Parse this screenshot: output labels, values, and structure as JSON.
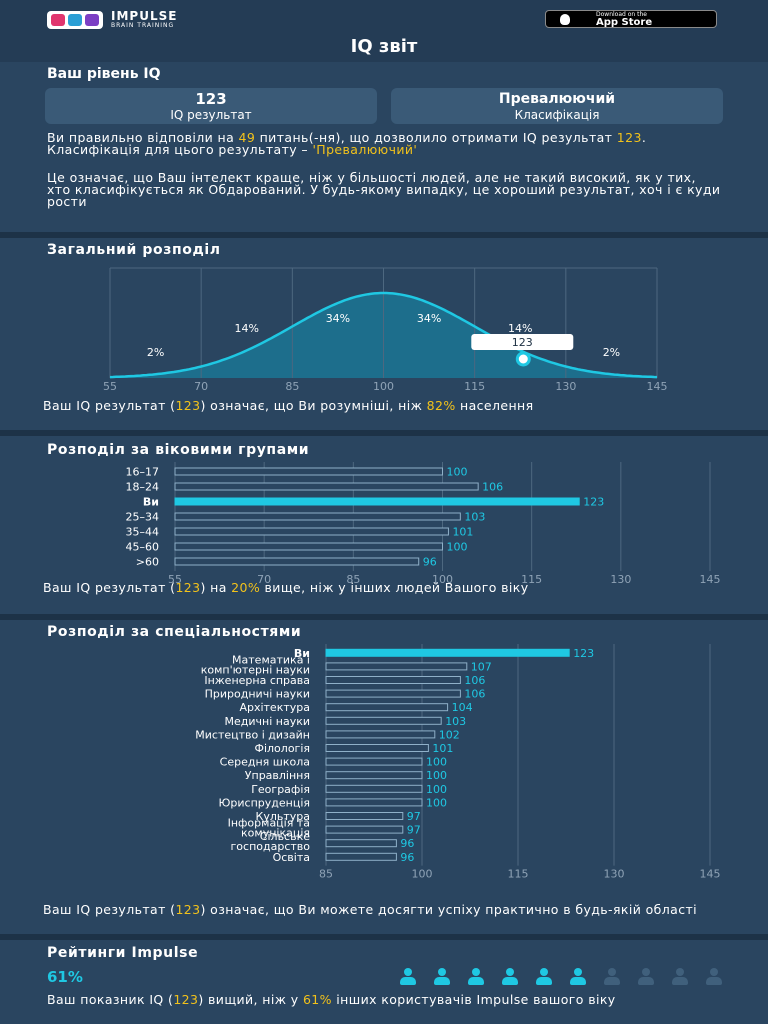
{
  "brand": {
    "name": "IMPULSE",
    "tagline": "BRAIN TRAINING"
  },
  "app_store": {
    "line1": "Download on the",
    "line2": "App Store"
  },
  "page_title": "IQ звіт",
  "level": {
    "heading": "Ваш рівень IQ",
    "score_card": {
      "value": "123",
      "caption": "IQ результат"
    },
    "class_card": {
      "value": "Превалюючий",
      "caption": "Класифікація"
    },
    "p1": {
      "a": "Ви правильно відповіли на ",
      "answers": "49",
      "b": " питань(-ня), що дозволило отримати IQ результат ",
      "score": "123",
      "c": ". Класифікація для цього результату – ",
      "cls": "'Превалюючий'"
    },
    "p2": "Це означає, що Ваш інтелект краще, ніж у більшості людей, але не такий високий, як у тих, хто класифікується як Обдарований. У будь-якому випадку, це хороший результат, хоч і є куди рости"
  },
  "colors": {
    "accent": "#1fc8e3",
    "highlight": "#f2c21b",
    "background": "#2a4560",
    "card": "#3a5a77",
    "muted_icon": "#40607c"
  },
  "distribution": {
    "heading": "Загальний розподіл",
    "marker_label": "123",
    "caption": {
      "a": "Ваш IQ результат (",
      "score": "123",
      "b": ") означає, що Ви розумніші, ніж ",
      "pct": "82%",
      "c": " населення"
    }
  },
  "age": {
    "heading": "Розподіл за віковими групами",
    "caption": {
      "a": "Ваш IQ результат (",
      "score": "123",
      "b": ") на ",
      "pct": "20%",
      "c": " вище, ніж у інших людей Вашого віку"
    }
  },
  "prof": {
    "heading": "Розподіл за спеціальностями",
    "caption": {
      "a": "Ваш IQ результат (",
      "score": "123",
      "b": ") означає, що Ви можете досягти успіху практично в будь-якій області"
    }
  },
  "rating": {
    "heading": "Рейтинги Impulse",
    "percent": "61%",
    "icons_total": 10,
    "icons_active": 6,
    "caption": {
      "a": "Ваш показник IQ (",
      "score": "123",
      "b": ") вищий, ніж у ",
      "pct": "61%",
      "c": " інших користувачів Impulse вашого віку"
    }
  },
  "chart_data": [
    {
      "type": "area",
      "title": "Загальний розподіл",
      "x_ticks": [
        "55",
        "70",
        "85",
        "100",
        "115",
        "130",
        "145"
      ],
      "xlim": [
        55,
        145
      ],
      "mean": 100,
      "sd": 15,
      "bands": [
        {
          "range": [
            55,
            70
          ],
          "label": "2%"
        },
        {
          "range": [
            70,
            85
          ],
          "label": "14%"
        },
        {
          "range": [
            85,
            100
          ],
          "label": "34%"
        },
        {
          "range": [
            100,
            115
          ],
          "label": "34%"
        },
        {
          "range": [
            115,
            130
          ],
          "label": "14%"
        },
        {
          "range": [
            130,
            145
          ],
          "label": "2%"
        }
      ],
      "marker": 123,
      "grid": true
    },
    {
      "type": "bar",
      "orientation": "horizontal",
      "title": "Розподіл за віковими групами",
      "categories": [
        "16–17",
        "18–24",
        "Ви",
        "25–34",
        "35–44",
        "45–60",
        ">60"
      ],
      "values": [
        100,
        106,
        123,
        103,
        101,
        100,
        96
      ],
      "highlight": "Ви",
      "xlim": [
        55,
        145
      ],
      "x_ticks": [
        "55",
        "70",
        "85",
        "100",
        "115",
        "130",
        "145"
      ]
    },
    {
      "type": "bar",
      "orientation": "horizontal",
      "title": "Розподіл за спеціальностями",
      "categories": [
        "Ви",
        "Математика і комп'ютерні науки",
        "Інженерна справа",
        "Природничі науки",
        "Архітектура",
        "Медичні науки",
        "Мистецтво і дизайн",
        "Філологія",
        "Середня школа",
        "Управління",
        "Географія",
        "Юриспруденція",
        "Культура",
        "Інформація та комунікація",
        "Сільське господарство",
        "Освіта"
      ],
      "values": [
        123,
        107,
        106,
        106,
        104,
        103,
        102,
        101,
        100,
        100,
        100,
        100,
        97,
        97,
        96,
        96
      ],
      "highlight": "Ви",
      "xlim": [
        85,
        145
      ],
      "x_ticks": [
        "85",
        "100",
        "115",
        "130",
        "145"
      ]
    }
  ]
}
